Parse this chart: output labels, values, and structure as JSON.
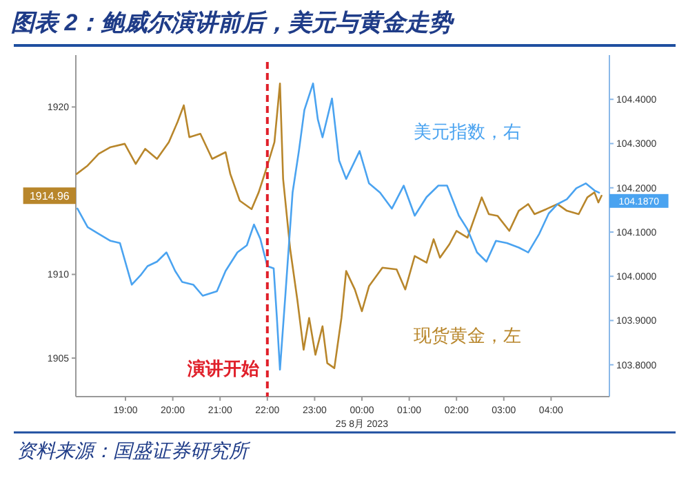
{
  "chart_data": {
    "type": "line",
    "title": "图表 2：鲍威尔演讲前后，美元与黄金走势",
    "xlabel": "25 8月 2023",
    "xlim": [
      "2023-08-24T17:57",
      "2023-08-25T05:14"
    ],
    "xticks": [
      {
        "value": "2023-08-24T19:00",
        "label": "19:00"
      },
      {
        "value": "2023-08-24T20:00",
        "label": "20:00"
      },
      {
        "value": "2023-08-24T21:00",
        "label": "21:00"
      },
      {
        "value": "2023-08-24T22:00",
        "label": "22:00"
      },
      {
        "value": "2023-08-24T23:00",
        "label": "23:00"
      },
      {
        "value": "2023-08-25T00:00",
        "label": "00:00"
      },
      {
        "value": "2023-08-25T01:00",
        "label": "01:00"
      },
      {
        "value": "2023-08-25T02:00",
        "label": "02:00"
      },
      {
        "value": "2023-08-25T03:00",
        "label": "03:00"
      },
      {
        "value": "2023-08-25T04:00",
        "label": "04:00"
      }
    ],
    "ylim": [
      1902.7,
      1923.1
    ],
    "yticks": [
      1905,
      1910,
      1920
    ],
    "y2lim": [
      103.728,
      104.5
    ],
    "y2ticks": [
      {
        "value": 103.8,
        "label": "103.8000"
      },
      {
        "value": 103.9,
        "label": "103.9000"
      },
      {
        "value": 104,
        "label": "104.0000"
      },
      {
        "value": 104.1,
        "label": "104.1000"
      },
      {
        "value": 104.2,
        "label": "104.2000"
      },
      {
        "value": 104.3,
        "label": "104.3000"
      },
      {
        "value": 104.4,
        "label": "104.4000"
      }
    ],
    "grid": false,
    "legend": false,
    "marker": "none",
    "line_style": "solid",
    "series": [
      {
        "name": "现货黄金，左",
        "color": "#b8862b",
        "x": [
          "2023-08-24T17:58",
          "2023-08-24T18:12",
          "2023-08-24T18:26",
          "2023-08-24T18:41",
          "2023-08-24T18:59",
          "2023-08-24T19:13",
          "2023-08-24T19:25",
          "2023-08-24T19:40",
          "2023-08-24T19:55",
          "2023-08-24T20:06",
          "2023-08-24T20:14",
          "2023-08-24T20:21",
          "2023-08-24T20:35",
          "2023-08-24T20:50",
          "2023-08-24T21:07",
          "2023-08-24T21:13",
          "2023-08-24T21:25",
          "2023-08-24T21:40",
          "2023-08-24T21:49",
          "2023-08-24T22:00",
          "2023-08-24T22:09",
          "2023-08-24T22:16",
          "2023-08-24T22:20",
          "2023-08-24T22:29",
          "2023-08-24T22:38",
          "2023-08-24T22:46",
          "2023-08-24T22:53",
          "2023-08-24T23:01",
          "2023-08-24T23:10",
          "2023-08-24T23:16",
          "2023-08-24T23:25",
          "2023-08-24T23:34",
          "2023-08-24T23:40",
          "2023-08-24T23:51",
          "2023-08-25T00:00",
          "2023-08-25T00:09",
          "2023-08-25T00:26",
          "2023-08-25T00:44",
          "2023-08-25T00:55",
          "2023-08-25T01:07",
          "2023-08-25T01:22",
          "2023-08-25T01:31",
          "2023-08-25T01:39",
          "2023-08-25T01:51",
          "2023-08-25T02:00",
          "2023-08-25T02:14",
          "2023-08-25T02:32",
          "2023-08-25T02:41",
          "2023-08-25T02:52",
          "2023-08-25T03:07",
          "2023-08-25T03:19",
          "2023-08-25T03:31",
          "2023-08-25T03:39",
          "2023-08-25T03:54",
          "2023-08-25T04:08",
          "2023-08-25T04:20",
          "2023-08-25T04:35",
          "2023-08-25T04:46",
          "2023-08-25T04:55",
          "2023-08-25T05:00",
          "2023-08-25T05:04"
        ],
        "values": [
          1916,
          1916.5,
          1917.2,
          1917.6,
          1917.8,
          1916.6,
          1917.5,
          1916.9,
          1917.9,
          1919.1,
          1920.1,
          1918.2,
          1918.4,
          1916.9,
          1917.3,
          1916,
          1914.4,
          1913.9,
          1914.9,
          1916.5,
          1917.9,
          1921.4,
          1915.7,
          1911.5,
          1908.5,
          1905.5,
          1907.4,
          1905.2,
          1906.9,
          1904.7,
          1904.4,
          1907.4,
          1910.2,
          1909.1,
          1907.8,
          1909.3,
          1910.4,
          1910.3,
          1909.1,
          1911.1,
          1910.7,
          1912.1,
          1911,
          1911.8,
          1912.6,
          1912.2,
          1914.6,
          1913.6,
          1913.5,
          1912.6,
          1913.8,
          1914.2,
          1913.6,
          1913.9,
          1914.2,
          1913.8,
          1913.6,
          1914.6,
          1914.9,
          1914.3,
          1914.7
        ]
      },
      {
        "name": "美元指数，右",
        "color": "#4aa3f0",
        "axis": "y2",
        "x": [
          "2023-08-24T17:59",
          "2023-08-24T18:12",
          "2023-08-24T18:26",
          "2023-08-24T18:41",
          "2023-08-24T18:53",
          "2023-08-24T19:08",
          "2023-08-24T19:19",
          "2023-08-24T19:28",
          "2023-08-24T19:40",
          "2023-08-24T19:52",
          "2023-08-24T20:03",
          "2023-08-24T20:12",
          "2023-08-24T20:26",
          "2023-08-24T20:38",
          "2023-08-24T20:56",
          "2023-08-24T21:07",
          "2023-08-24T21:22",
          "2023-08-24T21:34",
          "2023-08-24T21:43",
          "2023-08-24T21:51",
          "2023-08-24T22:00",
          "2023-08-24T22:08",
          "2023-08-24T22:12",
          "2023-08-24T22:16",
          "2023-08-24T22:23",
          "2023-08-24T22:32",
          "2023-08-24T22:40",
          "2023-08-24T22:47",
          "2023-08-24T22:58",
          "2023-08-24T23:04",
          "2023-08-24T23:10",
          "2023-08-24T23:22",
          "2023-08-24T23:31",
          "2023-08-24T23:40",
          "2023-08-24T23:57",
          "2023-08-25T00:09",
          "2023-08-25T00:23",
          "2023-08-25T00:38",
          "2023-08-25T00:53",
          "2023-08-25T01:07",
          "2023-08-25T01:22",
          "2023-08-25T01:37",
          "2023-08-25T01:48",
          "2023-08-25T02:03",
          "2023-08-25T02:14",
          "2023-08-25T02:26",
          "2023-08-25T02:38",
          "2023-08-25T02:50",
          "2023-08-25T03:04",
          "2023-08-25T03:19",
          "2023-08-25T03:31",
          "2023-08-25T03:45",
          "2023-08-25T03:57",
          "2023-08-25T04:08",
          "2023-08-25T04:20",
          "2023-08-25T04:32",
          "2023-08-25T04:44",
          "2023-08-25T04:55",
          "2023-08-25T05:01"
        ],
        "values": [
          104.153,
          104.111,
          104.096,
          104.08,
          104.075,
          103.981,
          104.002,
          104.023,
          104.033,
          104.054,
          104.012,
          103.987,
          103.981,
          103.956,
          103.966,
          104.012,
          104.054,
          104.07,
          104.117,
          104.085,
          104.023,
          104.018,
          103.909,
          103.789,
          103.961,
          104.189,
          104.283,
          104.376,
          104.436,
          104.355,
          104.314,
          104.402,
          104.262,
          104.22,
          104.283,
          104.21,
          104.189,
          104.153,
          104.205,
          104.137,
          104.179,
          104.205,
          104.205,
          104.137,
          104.106,
          104.054,
          104.033,
          104.08,
          104.075,
          104.065,
          104.054,
          104.096,
          104.142,
          104.163,
          104.174,
          104.199,
          104.21,
          104.194,
          104.189
        ]
      }
    ],
    "ref_lines": [
      {
        "axis": "x",
        "value": "2023-08-24T22:00",
        "label": "演讲开始",
        "color": "#e0202a",
        "line_style": "dashed"
      }
    ],
    "annotations": [
      "1914.96",
      "104.1870",
      "资料来源：国盛证券研究所"
    ]
  }
}
